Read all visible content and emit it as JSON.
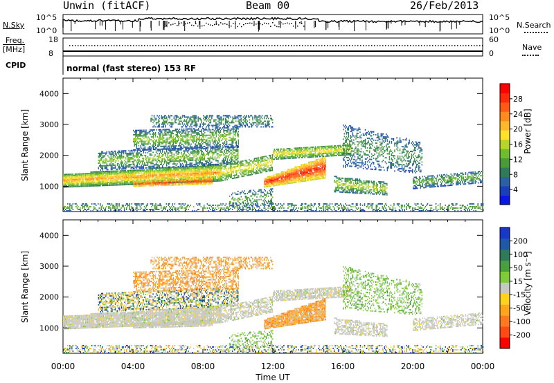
{
  "header": {
    "station": "Unwin (fitACF)",
    "beam": "Beam 00",
    "date": "26/Feb/2013"
  },
  "top_panels": {
    "nsky_label": "N.Sky",
    "nsky_ticks": [
      "10^5",
      "10^0"
    ],
    "nsearch_label": "N.Search",
    "nsearch_ticks": [
      "10^5",
      "10^0"
    ],
    "freq_label_1": "Freq.",
    "freq_label_2": "[MHz]",
    "freq_ticks": [
      "18",
      "8"
    ],
    "nave_label": "Nave",
    "nave_ticks": [
      "60",
      "0"
    ],
    "cpid_label": "CPID",
    "cpid_text": "normal (fast stereo) 153 RF"
  },
  "chart_data": [
    {
      "type": "heatmap",
      "panel": "power",
      "ylabel": "Slant Range [km]",
      "xlabel": "",
      "xlim": [
        "00:00",
        "24:00"
      ],
      "ylim": [
        180,
        4500
      ],
      "y_ticks": [
        "1000",
        "2000",
        "3000",
        "4000"
      ],
      "x_ticks": [
        "00:00",
        "04:00",
        "08:00",
        "12:00",
        "16:00",
        "20:00",
        "00:00"
      ],
      "colorbar": {
        "label": "Power [dB]",
        "ticks": [
          "4",
          "8",
          "12",
          "16",
          "20",
          "24",
          "28"
        ],
        "range": [
          0,
          30
        ],
        "colors": [
          "#0a16e6",
          "#1a3fb8",
          "#2b5fa6",
          "#2f7a5a",
          "#4a9a3a",
          "#6ebd2a",
          "#b6d42a",
          "#ffe12a",
          "#ffb82a",
          "#ff8a1e",
          "#ff5a14",
          "#ff2a0a",
          "#ff0000"
        ]
      }
    },
    {
      "type": "heatmap",
      "panel": "velocity",
      "ylabel": "Slant Range [km]",
      "xlabel": "Time UT",
      "xlim": [
        "00:00",
        "24:00"
      ],
      "ylim": [
        180,
        4500
      ],
      "y_ticks": [
        "1000",
        "2000",
        "3000",
        "4000"
      ],
      "x_ticks": [
        "00:00",
        "04:00",
        "08:00",
        "12:00",
        "16:00",
        "20:00",
        "00:00"
      ],
      "colorbar": {
        "label": "Velocity [m s⁻¹]",
        "ticks": [
          "200",
          "100",
          "50",
          "15",
          "-15",
          "-50",
          "-100",
          "-200"
        ],
        "colors": [
          "#1838c8",
          "#1f58a8",
          "#2e7a5a",
          "#49a03a",
          "#7fcc3a",
          "#c8c8c0",
          "#ffd21e",
          "#ffa61e",
          "#ff7a1e",
          "#ff4a14",
          "#ff0000"
        ]
      }
    }
  ]
}
